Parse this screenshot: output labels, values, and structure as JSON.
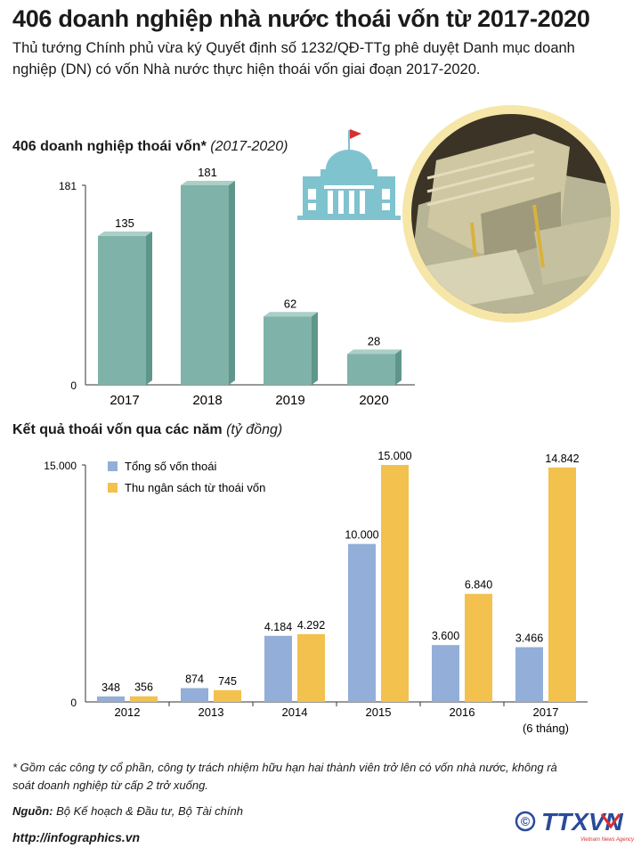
{
  "title": "406 doanh nghiệp nhà nước thoái vốn từ 2017-2020",
  "subtitle": "Thủ tướng Chính phủ vừa ký Quyết định số 1232/QĐ-TTg phê duyệt Danh mục doanh nghiệp (DN) có vốn Nhà nước thực hiện thoái vốn giai đoạn 2017-2020.",
  "colors": {
    "teal": "#7fb3a9",
    "teal_top": "#a9cfc6",
    "teal_side": "#5f968c",
    "blue": "#93aed8",
    "gold": "#f2c14e",
    "icon": "#7fc3cf",
    "flag": "#d63031"
  },
  "icons": [
    "government-building-icon",
    "money-stack-photo"
  ],
  "chart_data": [
    {
      "type": "bar",
      "title_main": "406 doanh nghiệp thoái vốn*",
      "title_note": "(2017-2020)",
      "categories": [
        "2017",
        "2018",
        "2019",
        "2020"
      ],
      "values": [
        135,
        181,
        62,
        28
      ],
      "value_labels": [
        "135",
        "181",
        "62",
        "28"
      ],
      "yticks": [
        "181",
        "0"
      ],
      "ylim": [
        0,
        181
      ]
    },
    {
      "type": "bar",
      "title_main": "Kết quả thoái vốn qua các năm",
      "title_note": "(tỷ đồng)",
      "categories": [
        "2012",
        "2013",
        "2014",
        "2015",
        "2016",
        "2017"
      ],
      "category_sublabels": [
        "",
        "",
        "",
        "",
        "",
        "(6 tháng)"
      ],
      "series": [
        {
          "name": "Tổng số vốn thoái",
          "values": [
            348,
            874,
            4184,
            10000,
            3600,
            3466
          ],
          "labels": [
            "348",
            "874",
            "4.184",
            "10.000",
            "3.600",
            "3.466"
          ]
        },
        {
          "name": "Thu ngân sách từ thoái vốn",
          "values": [
            356,
            745,
            4292,
            15000,
            6840,
            14842
          ],
          "labels": [
            "356",
            "745",
            "4.292",
            "15.000",
            "6.840",
            "14.842"
          ]
        }
      ],
      "yticks": [
        "15.000",
        "0"
      ],
      "ylim": [
        0,
        15000
      ],
      "legend": "top-left"
    }
  ],
  "footnote": "* Gồm các công ty cổ phần, công ty trách nhiệm hữu hạn hai thành viên trở lên có vốn nhà nước, không rà soát doanh nghiệp từ cấp 2 trở xuống.",
  "source_label": "Nguồn:",
  "source_text": "Bộ Kế hoạch & Đầu tư, Bộ Tài chính",
  "url": "http://infographics.vn",
  "logo_text": "TTXVN",
  "logo_sub": "Vietnam News Agency",
  "copyright": "©"
}
